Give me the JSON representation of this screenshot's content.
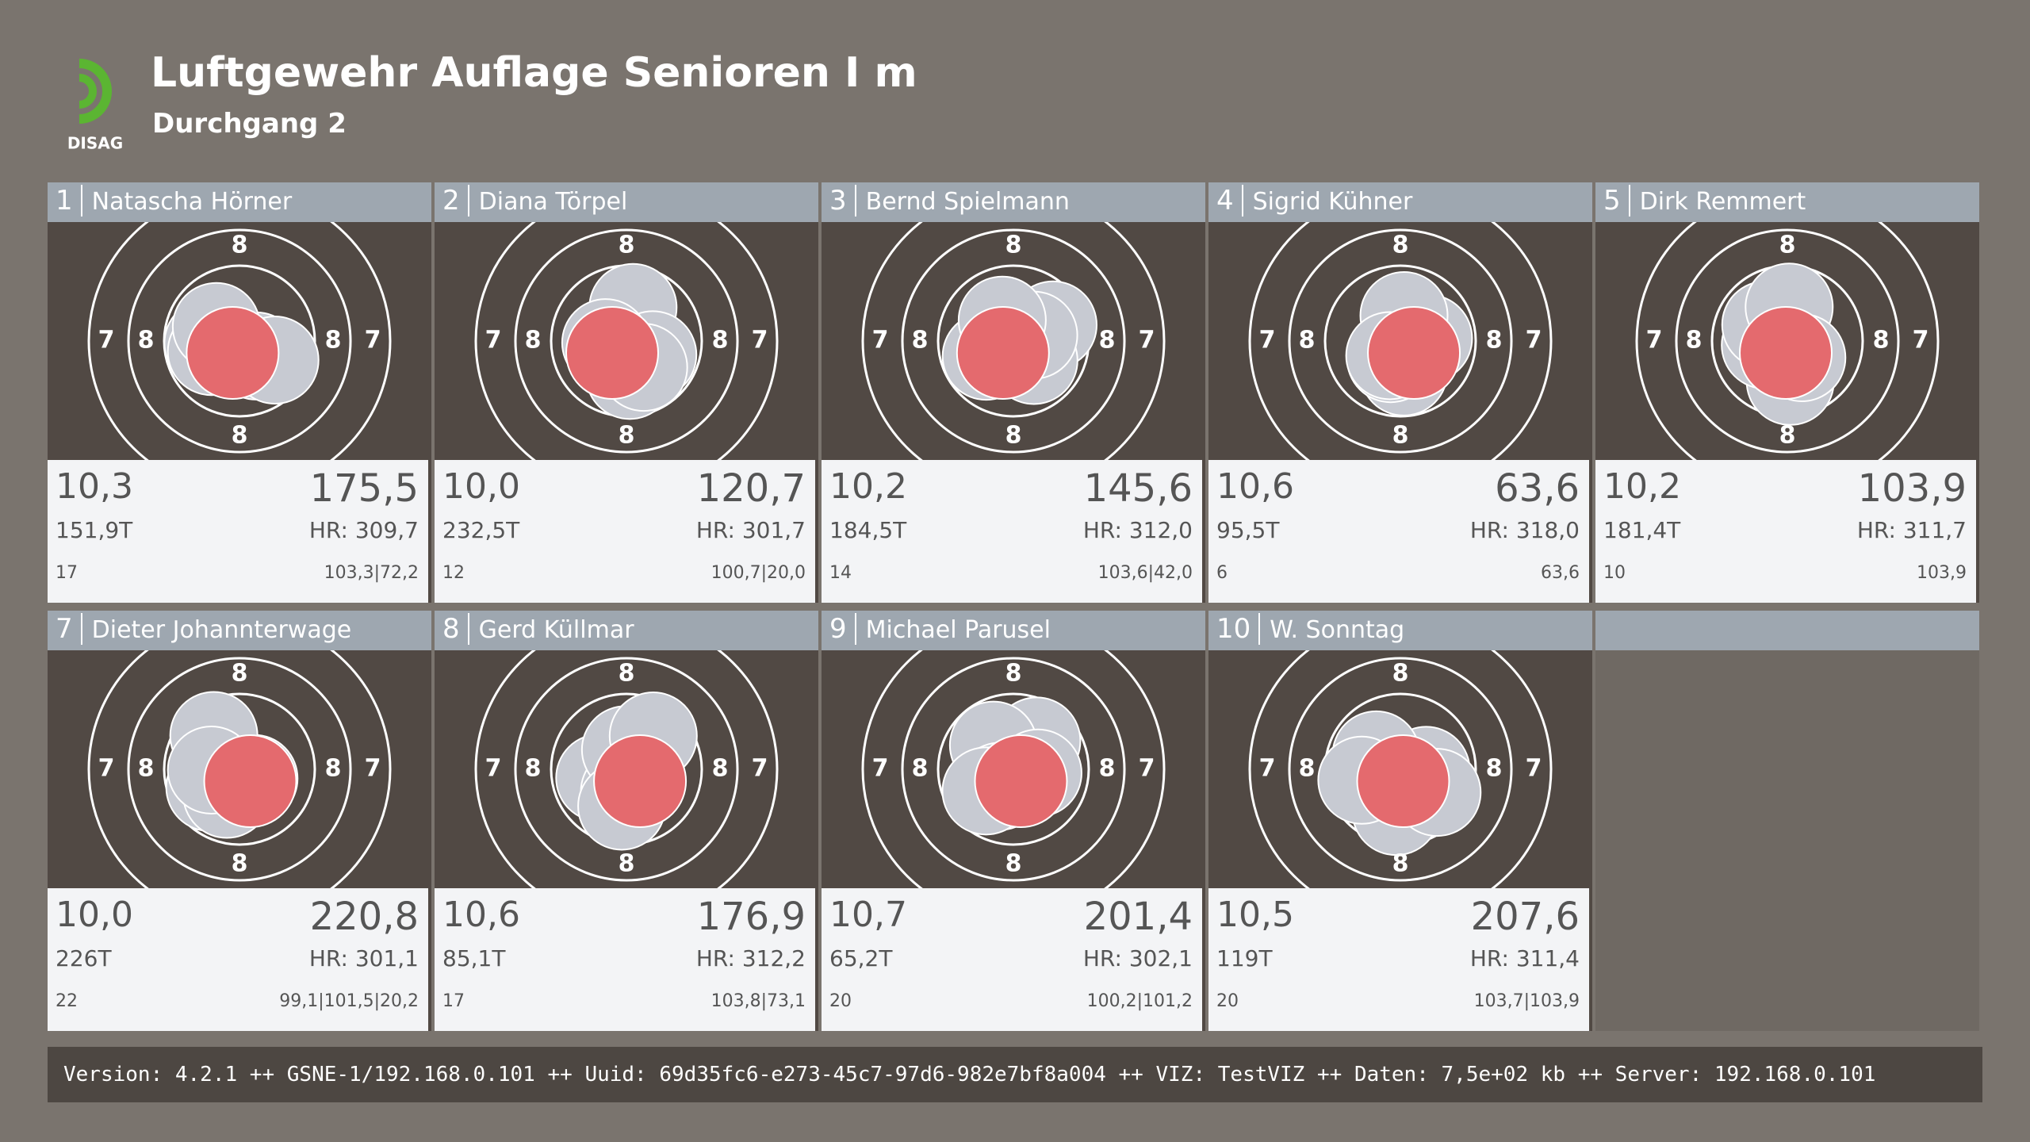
{
  "header": {
    "logo": "DISAG",
    "title": "Luftgewehr Auflage Senioren I m",
    "subtitle": "Durchgang 2"
  },
  "target": {
    "ring_labels": [
      "8",
      "7"
    ]
  },
  "shooters": [
    {
      "lane": "1",
      "name": "Natascha Hörner",
      "last": "10,3",
      "total": "175,5",
      "time": "151,9T",
      "hr": "HR: 309,7",
      "shots": "17",
      "series": "103,3|72,2"
    },
    {
      "lane": "2",
      "name": "Diana Törpel",
      "last": "10,0",
      "total": "120,7",
      "time": "232,5T",
      "hr": "HR: 301,7",
      "shots": "12",
      "series": "100,7|20,0"
    },
    {
      "lane": "3",
      "name": "Bernd Spielmann",
      "last": "10,2",
      "total": "145,6",
      "time": "184,5T",
      "hr": "HR: 312,0",
      "shots": "14",
      "series": "103,6|42,0"
    },
    {
      "lane": "4",
      "name": "Sigrid Kühner",
      "last": "10,6",
      "total": "63,6",
      "time": "95,5T",
      "hr": "HR: 318,0",
      "shots": "6",
      "series": "63,6"
    },
    {
      "lane": "5",
      "name": "Dirk Remmert",
      "last": "10,2",
      "total": "103,9",
      "time": "181,4T",
      "hr": "HR: 311,7",
      "shots": "10",
      "series": "103,9"
    },
    {
      "lane": "7",
      "name": "Dieter Johannterwage",
      "last": "10,0",
      "total": "220,8",
      "time": "226T",
      "hr": "HR: 301,1",
      "shots": "22",
      "series": "99,1|101,5|20,2"
    },
    {
      "lane": "8",
      "name": "Gerd Küllmar",
      "last": "10,6",
      "total": "176,9",
      "time": "85,1T",
      "hr": "HR: 312,2",
      "shots": "17",
      "series": "103,8|73,1"
    },
    {
      "lane": "9",
      "name": "Michael Parusel",
      "last": "10,7",
      "total": "201,4",
      "time": "65,2T",
      "hr": "HR: 302,1",
      "shots": "20",
      "series": "100,2|101,2"
    },
    {
      "lane": "10",
      "name": "W. Sonntag",
      "last": "10,5",
      "total": "207,6",
      "time": "119T",
      "hr": "HR: 311,4",
      "shots": "20",
      "series": "103,7|103,9"
    }
  ],
  "footer": "Version: 4.2.1 ++ GSNE-1/192.168.0.101 ++ Uuid: 69d35fc6-e273-45c7-97d6-982e7bf8a004 ++ VIZ: TestVIZ ++ Daten: 7,5e+02 kb ++ Server: 192.168.0.101"
}
